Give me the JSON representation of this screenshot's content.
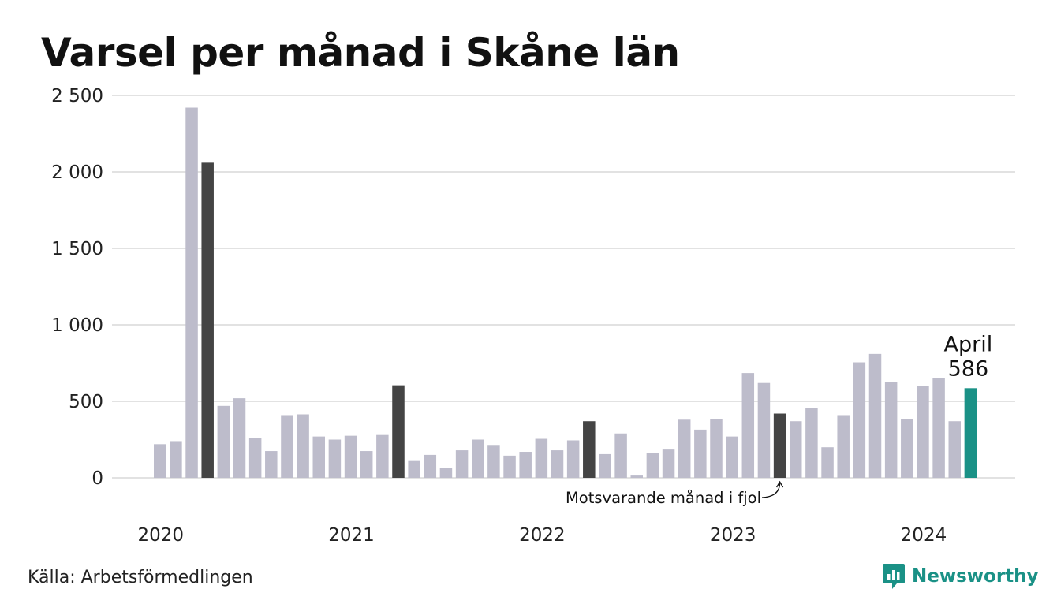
{
  "title": "Varsel per månad i Skåne län",
  "source": "Källa: Arbetsförmedlingen",
  "brand": {
    "name": "Newsworthy",
    "icon": "newsworthy-logo-icon"
  },
  "colors": {
    "default_bar": "#bdbccb",
    "same_month_bar": "#444444",
    "current_bar": "#1a9186",
    "grid": "#e2e2e2",
    "brand": "#1a9186"
  },
  "chart_data": {
    "type": "bar",
    "ylim": [
      0,
      2500
    ],
    "yticks": [
      {
        "value": 0,
        "label": "0"
      },
      {
        "value": 500,
        "label": "500"
      },
      {
        "value": 1000,
        "label": "1 000"
      },
      {
        "value": 1500,
        "label": "1 500"
      },
      {
        "value": 2000,
        "label": "2 000"
      },
      {
        "value": 2500,
        "label": "2 500"
      }
    ],
    "grid": true,
    "x_tick_labels": [
      {
        "label": "2020",
        "index": 0
      },
      {
        "label": "2021",
        "index": 12
      },
      {
        "label": "2022",
        "index": 24
      },
      {
        "label": "2023",
        "index": 36
      },
      {
        "label": "2024",
        "index": 48
      }
    ],
    "values": [
      220,
      240,
      2420,
      2060,
      470,
      520,
      260,
      175,
      410,
      415,
      270,
      250,
      275,
      175,
      280,
      605,
      110,
      150,
      65,
      180,
      250,
      210,
      145,
      170,
      255,
      180,
      245,
      370,
      155,
      290,
      15,
      160,
      185,
      380,
      315,
      385,
      270,
      685,
      620,
      420,
      370,
      455,
      200,
      410,
      755,
      810,
      625,
      385,
      600,
      650,
      370,
      586
    ],
    "same_month_indices": [
      3,
      15,
      27,
      39
    ],
    "current_index": 51,
    "current_label": {
      "month": "April",
      "value": "586"
    },
    "annotation": {
      "text": "Motsvarande månad i fjol",
      "target_index": 39
    }
  }
}
